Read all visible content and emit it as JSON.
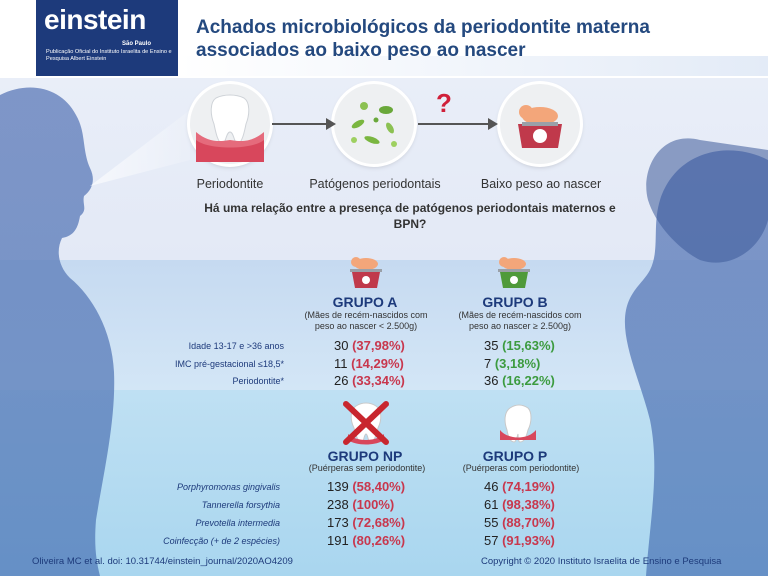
{
  "logo": {
    "word": "einstein",
    "city": "São Paulo",
    "publication": "Publicação Oficial do Instituto Israelita de Ensino e Pesquisa Albert Einstein"
  },
  "header": {
    "title": "Achados microbiológicos da periodontite materna associados ao baixo peso ao nascer"
  },
  "flow": {
    "steps": [
      {
        "label": "Periodontite"
      },
      {
        "label": "Patógenos periodontais"
      },
      {
        "label": "Baixo peso ao nascer"
      }
    ],
    "question_mark": "?"
  },
  "question": "Há uma relação entre a presença de patógenos periodontais maternos e BPN?",
  "groups_ab": {
    "group_a": {
      "title": "GRUPO A",
      "subtitle": "(Mães de recém-nascidos com peso ao nascer < 2.500g)"
    },
    "group_b": {
      "title": "GRUPO B",
      "subtitle": "(Mães de recém-nascidos com peso ao nascer ≥ 2.500g)"
    },
    "rows": [
      {
        "label": "Idade 13-17 e >36 anos",
        "a_n": "30",
        "a_pct": "(37,98%)",
        "b_n": "35",
        "b_pct": "(15,63%)"
      },
      {
        "label": "IMC pré-gestacional ≤18,5*",
        "a_n": "11",
        "a_pct": "(14,29%)",
        "b_n": "7",
        "b_pct": "(3,18%)"
      },
      {
        "label": "Periodontite*",
        "a_n": "26",
        "a_pct": "(33,34%)",
        "b_n": "36",
        "b_pct": "(16,22%)"
      }
    ]
  },
  "groups_np": {
    "group_np": {
      "title": "GRUPO NP",
      "subtitle": "(Puérperas sem periodontite)"
    },
    "group_p": {
      "title": "GRUPO P",
      "subtitle": "(Puérperas com periodontite)"
    },
    "rows": [
      {
        "label": "Porphyromonas gingivalis",
        "np_n": "139",
        "np_pct": "(58,40%)",
        "p_n": "46",
        "p_pct": "(74,19%)"
      },
      {
        "label": "Tannerella forsythia",
        "np_n": "238",
        "np_pct": "(100%)",
        "p_n": "61",
        "p_pct": "(98,38%)"
      },
      {
        "label": "Prevotella intermedia",
        "np_n": "173",
        "np_pct": "(72,68%)",
        "p_n": "55",
        "p_pct": "(88,70%)"
      },
      {
        "label": "Coinfecção (+ de 2 espécies)",
        "np_n": "191",
        "np_pct": "(80,26%)",
        "p_n": "57",
        "p_pct": "(91,93%)"
      }
    ]
  },
  "footer": {
    "citation": "Oliveira MC et al.  doi: 10.31744/einstein_journal/2020AO4209",
    "copyright": "Copyright © 2020 Instituto Israelita de Ensino e Pesquisa"
  },
  "colors": {
    "navy": "#1d3a7b",
    "red": "#c8374d",
    "green": "#3c9b3f",
    "silhouette": "#5f7bb5"
  }
}
